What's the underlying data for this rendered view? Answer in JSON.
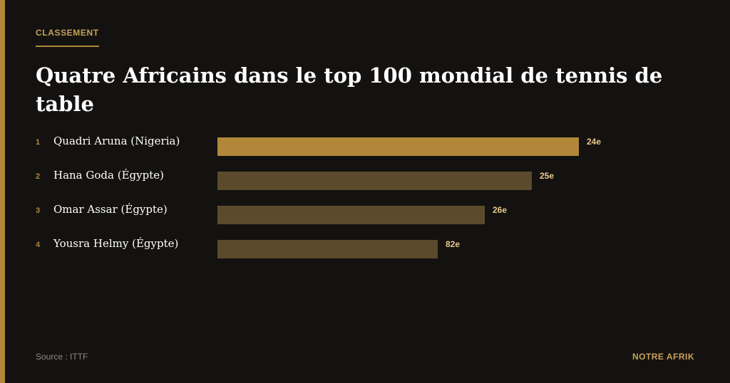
{
  "header": {
    "eyebrow": "CLASSEMENT",
    "title": "Quatre Africains dans le top 100 mondial de tennis de table"
  },
  "footer": {
    "source": "Source : ITTF",
    "brand": "NOTRE AFRIK"
  },
  "colors": {
    "accent": "#b1883a",
    "bar_highlight": "#b1883a",
    "bar_muted": "#5b4a2c",
    "background": "#141210",
    "value_label": "#e8c98a"
  },
  "chart_data": {
    "type": "bar",
    "orientation": "horizontal",
    "title": "Quatre Africains dans le top 100 mondial de tennis de table",
    "xlabel": "",
    "ylabel": "",
    "grid": false,
    "legend": "none",
    "categories": [
      "Quadri Aruna (Nigeria)",
      "Hana Goda (Égypte)",
      "Omar Assar (Égypte)",
      "Yousra Helmy (Égypte)"
    ],
    "ranks": [
      "1",
      "2",
      "3",
      "4"
    ],
    "values": [
      24,
      25,
      26,
      82
    ],
    "value_labels": [
      "24e",
      "25e",
      "26e",
      "82e"
    ],
    "bar_fraction": [
      1.0,
      0.87,
      0.74,
      0.61
    ],
    "highlight_index": 0
  }
}
